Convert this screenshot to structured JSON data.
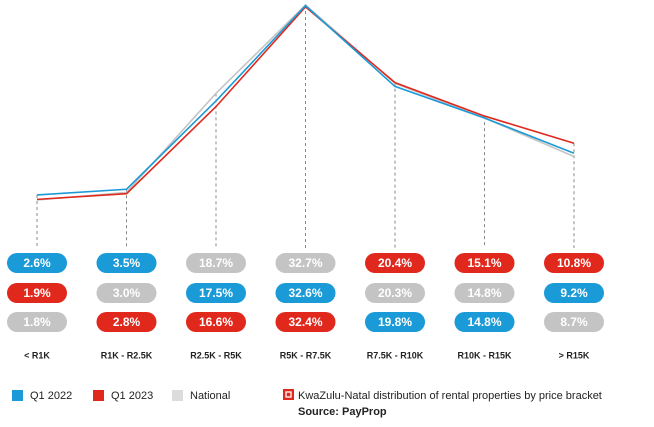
{
  "chart_data": {
    "type": "line",
    "categories": [
      "< R1K",
      "R1K - R2.5K",
      "R2.5K - R5K",
      "R5K - R7.5K",
      "R7.5K - R10K",
      "R10K - R15K",
      "> R15K"
    ],
    "series": [
      {
        "name": "Q1 2022",
        "color": "#1a9ad6",
        "values": [
          2.6,
          3.5,
          17.5,
          32.6,
          19.8,
          14.8,
          9.2
        ],
        "value_labels": [
          "2.6%",
          "3.5%",
          "17.5%",
          "32.6%",
          "19.8%",
          "14.8%",
          "9.2%"
        ]
      },
      {
        "name": "Q1 2023",
        "color": "#e0281d",
        "values": [
          1.9,
          2.8,
          16.6,
          32.4,
          20.4,
          15.1,
          10.8
        ],
        "value_labels": [
          "1.9%",
          "2.8%",
          "16.6%",
          "32.4%",
          "20.4%",
          "15.1%",
          "10.8%"
        ]
      },
      {
        "name": "National",
        "color": "#c4c4c4",
        "values": [
          1.8,
          3.0,
          18.7,
          32.7,
          20.3,
          14.8,
          8.7
        ],
        "value_labels": [
          "1.8%",
          "3.0%",
          "18.7%",
          "32.7%",
          "20.3%",
          "14.8%",
          "8.7%"
        ]
      }
    ],
    "caption": "KwaZulu-Natal distribution of rental properties by price bracket",
    "source": "Source: PayProp"
  }
}
